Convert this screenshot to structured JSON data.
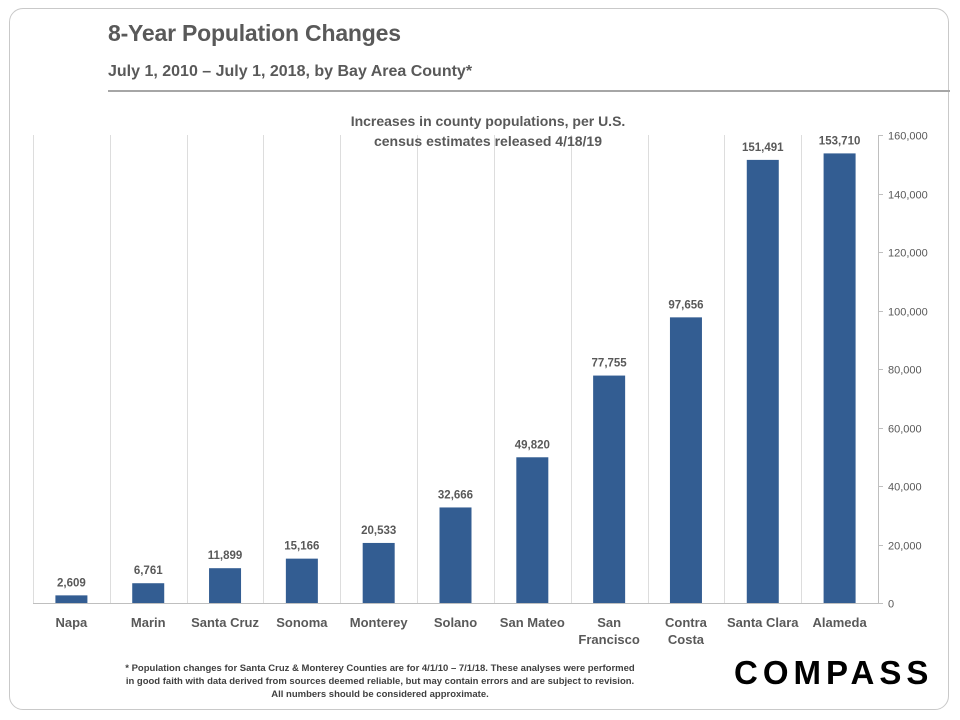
{
  "header": {
    "title": "8-Year Population Changes",
    "subtitle": "July 1, 2010 – July 1, 2018, by Bay Area County*"
  },
  "chart_data": {
    "type": "bar",
    "title": "Increases in county populations,  per U.S. census estimates released 4/18/19",
    "title_lines": [
      "Increases in county populations,  per U.S.",
      "census estimates released 4/18/19"
    ],
    "categories": [
      "Napa",
      "Marin",
      "Santa Cruz",
      "Sonoma",
      "Monterey",
      "Solano",
      "San Mateo",
      "San Francisco",
      "Contra Costa",
      "Santa Clara",
      "Alameda"
    ],
    "category_lines": [
      [
        "Napa"
      ],
      [
        "Marin"
      ],
      [
        "Santa Cruz"
      ],
      [
        "Sonoma"
      ],
      [
        "Monterey"
      ],
      [
        "Solano"
      ],
      [
        "San Mateo"
      ],
      [
        "San",
        "Francisco"
      ],
      [
        "Contra",
        "Costa"
      ],
      [
        "Santa Clara"
      ],
      [
        "Alameda"
      ]
    ],
    "values": [
      2609,
      6761,
      11899,
      15166,
      20533,
      32666,
      49820,
      77755,
      97656,
      151491,
      153710
    ],
    "value_labels": [
      "2,609",
      "6,761",
      "11,899",
      "15,166",
      "20,533",
      "32,666",
      "49,820",
      "77,755",
      "97,656",
      "151,491",
      "153,710"
    ],
    "ylim": [
      0,
      160000
    ],
    "yticks": [
      0,
      20000,
      40000,
      60000,
      80000,
      100000,
      120000,
      140000,
      160000
    ],
    "ytick_labels": [
      "0",
      "20,000",
      "40,000",
      "60,000",
      "80,000",
      "100,000",
      "120,000",
      "140,000",
      "160,000"
    ],
    "y_axis_side": "right",
    "xlabel": "",
    "ylabel": "",
    "grid": "vertical separators between categories",
    "bar_color": "#335d92"
  },
  "footnote": {
    "lines": [
      "* Population  changes for Santa Cruz & Monterey Counties are for 4/1/10 – 7/1/18. These analyses were performed",
      "in good faith with data derived from sources deemed reliable, but may contain errors and are subject to revision.",
      "All numbers should  be considered approximate."
    ]
  },
  "brand": {
    "logo_text": "COMPASS"
  }
}
